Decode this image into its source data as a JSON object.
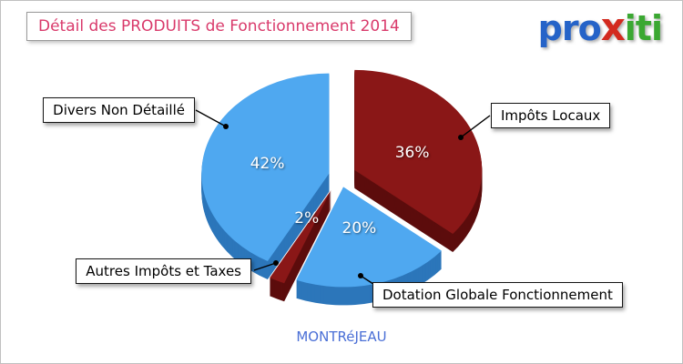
{
  "page": {
    "title": "Détail des PRODUITS de Fonctionnement 2014",
    "footer": "MONTRéJEAU",
    "background_color": "#ffffff",
    "title_color": "#d93a6b",
    "footer_color": "#4a6fd6"
  },
  "logo": {
    "pro": "pro",
    "x": "x",
    "iti": "iti",
    "colors": {
      "pro": "#2563c8",
      "x": "#d32a1f",
      "iti": "#3ba832"
    }
  },
  "chart_data": {
    "type": "pie",
    "title": "Détail des PRODUITS de Fonctionnement 2014",
    "unit": "%",
    "effect": "3d exploded pie",
    "start_angle_deg": -90,
    "direction": "clockwise",
    "legend_position": "callout-labels",
    "slices": [
      {
        "label": "Impôts Locaux",
        "value": 36,
        "percent_label": "36%",
        "color": "#8a1717",
        "side_color": "#5c0d0d"
      },
      {
        "label": "Dotation Globale Fonctionnement",
        "value": 20,
        "percent_label": "20%",
        "color": "#4fa8f0",
        "side_color": "#2c76ba"
      },
      {
        "label": "Autres Impôts et Taxes",
        "value": 2,
        "percent_label": "2%",
        "color": "#8a1717",
        "side_color": "#5c0d0d"
      },
      {
        "label": "Divers Non Détaillé",
        "value": 42,
        "percent_label": "42%",
        "color": "#4fa8f0",
        "side_color": "#2c76ba"
      }
    ]
  }
}
